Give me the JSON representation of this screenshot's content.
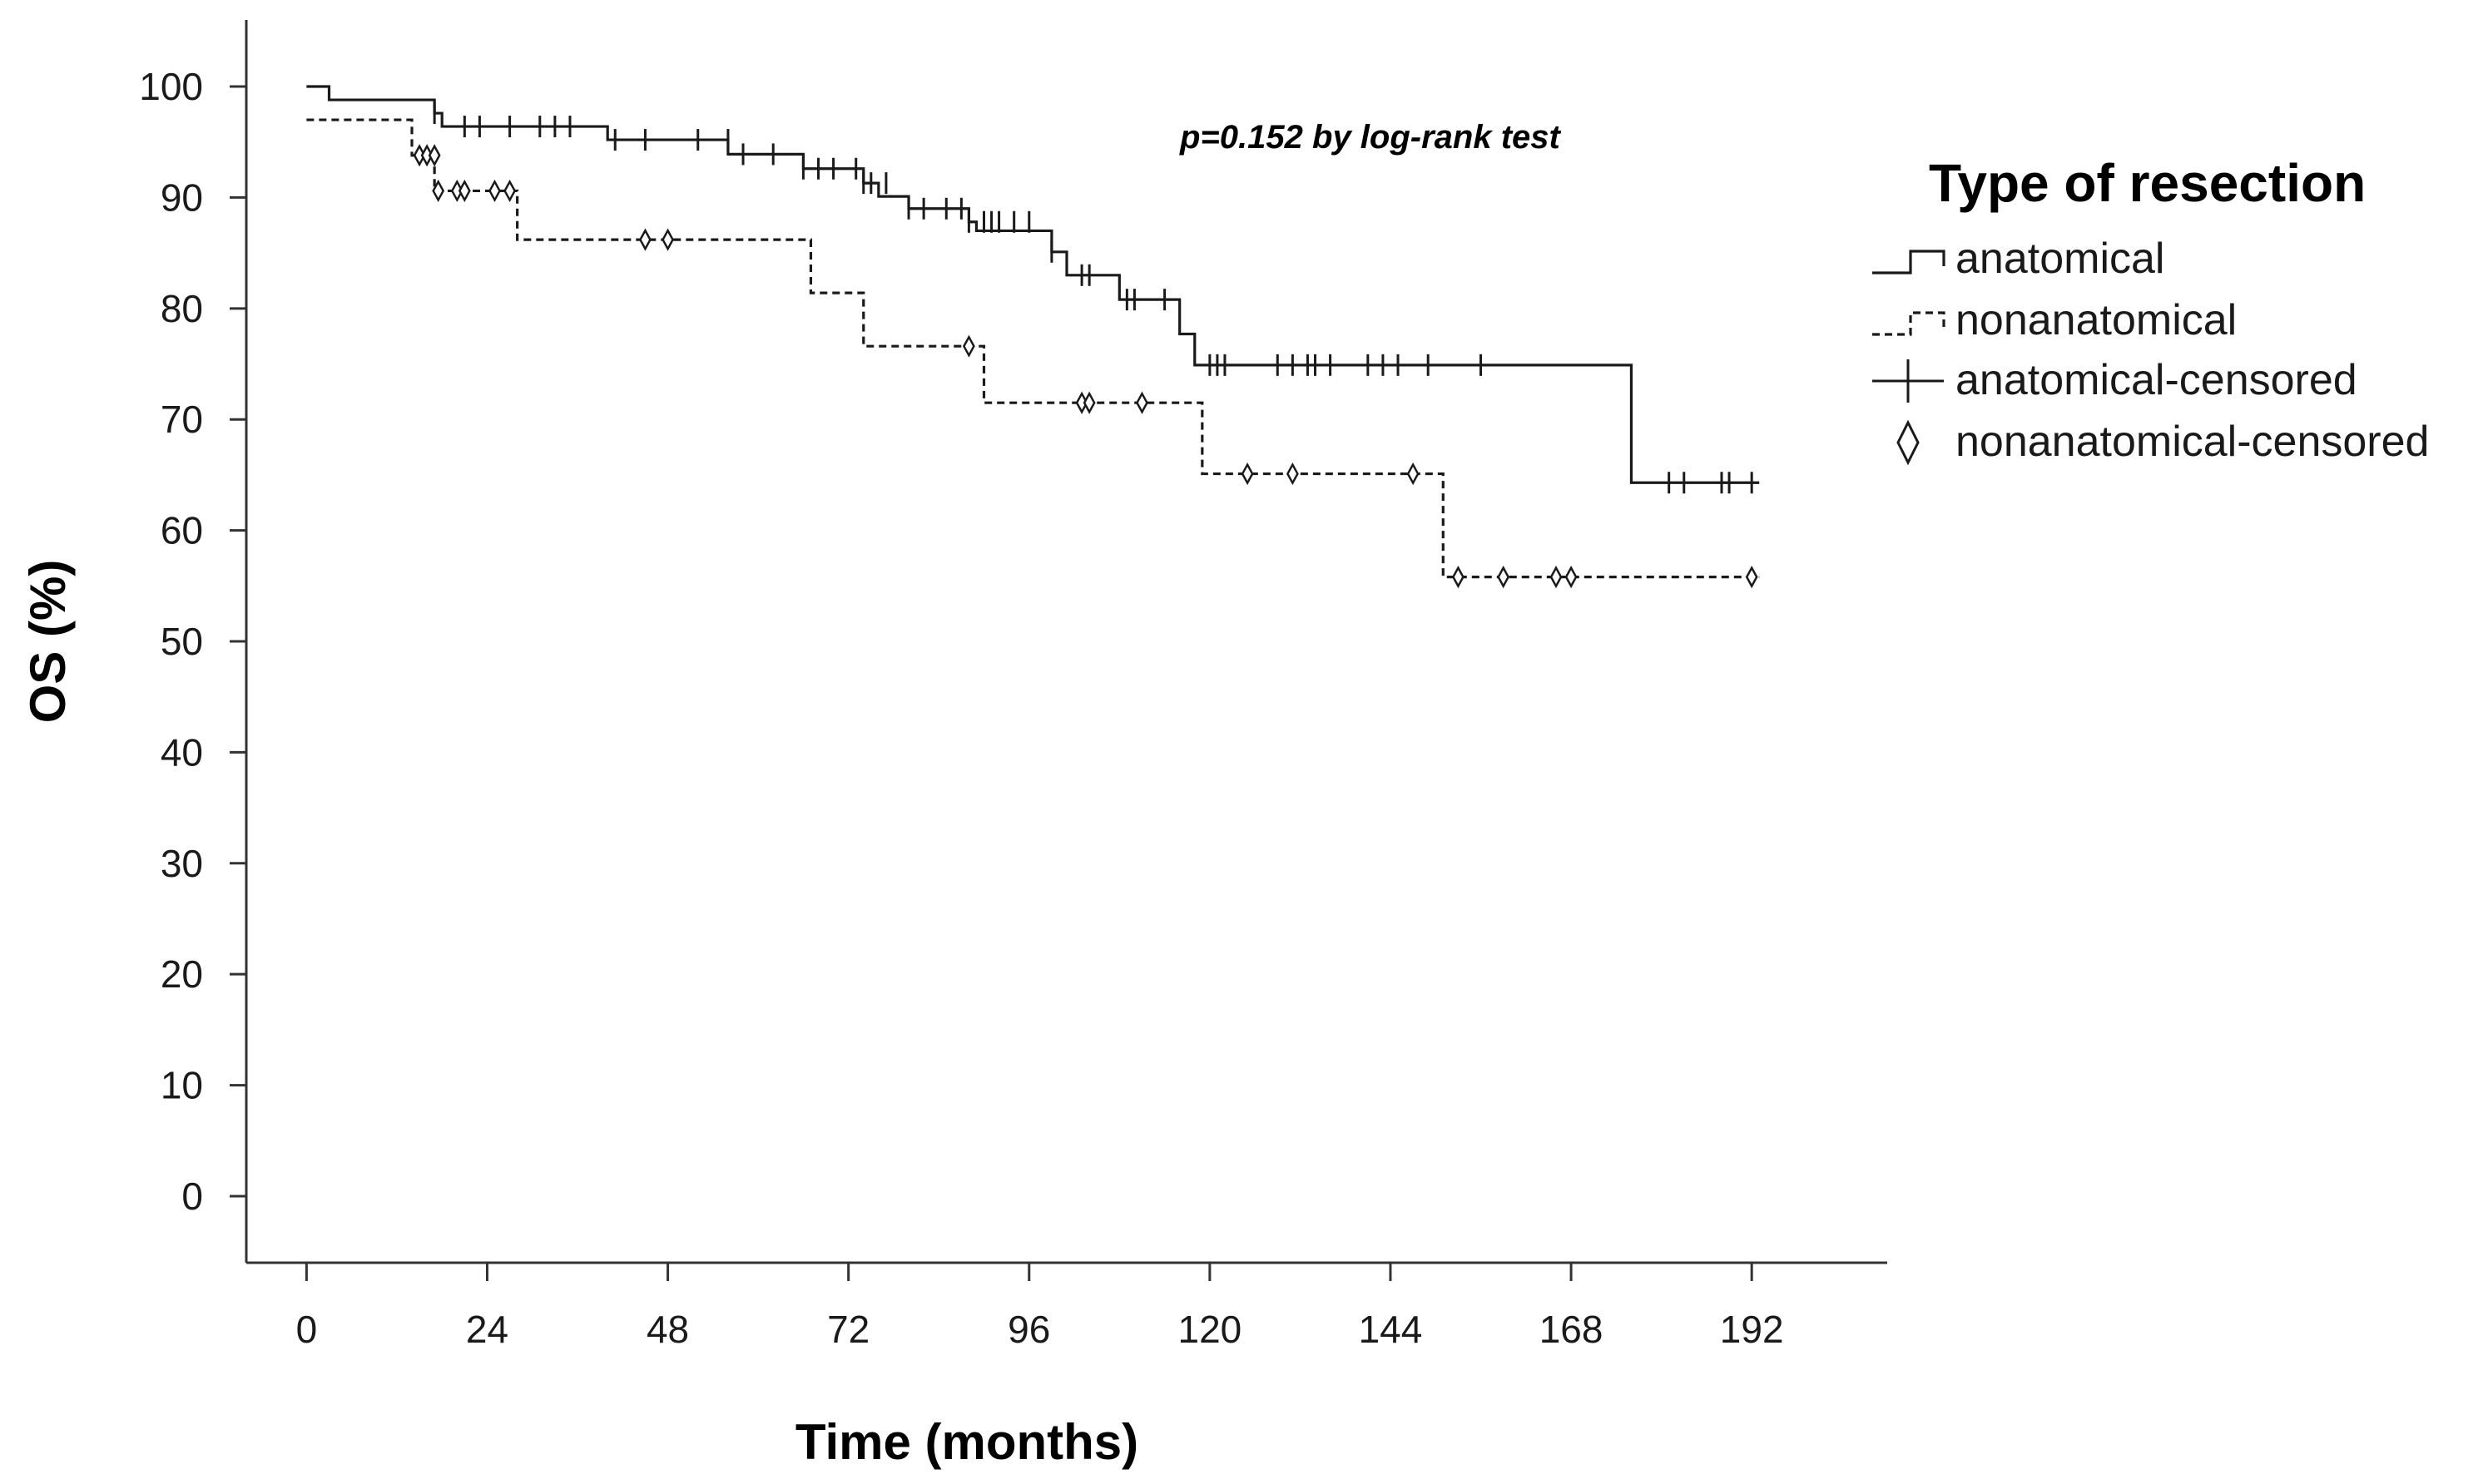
{
  "chart_data": {
    "type": "line",
    "subtype": "kaplan-meier step",
    "title": "",
    "annotation": "p=0.152 by log-rank test",
    "xlabel": "Time (months)",
    "ylabel": "OS (%)",
    "xlim": [
      -8,
      210
    ],
    "ylim": [
      -6,
      106
    ],
    "xticks": [
      0,
      24,
      48,
      72,
      96,
      120,
      144,
      168,
      192
    ],
    "yticks": [
      0,
      10,
      20,
      30,
      40,
      50,
      60,
      70,
      80,
      90,
      100
    ],
    "legend": {
      "title": "Type of resection",
      "placement": "right",
      "entries": [
        "anatomical",
        "nonanatomical",
        "anatomical-censored",
        "nonanatomical-censored"
      ]
    },
    "series": [
      {
        "name": "anatomical",
        "style": "solid",
        "censor_marker": "plus",
        "steps": [
          [
            0,
            100
          ],
          [
            3,
            98.8
          ],
          [
            17,
            97.6
          ],
          [
            18,
            96.4
          ],
          [
            40,
            95.2
          ],
          [
            56,
            93.9
          ],
          [
            66,
            92.6
          ],
          [
            74,
            91.3
          ],
          [
            76,
            90.1
          ],
          [
            80,
            89.0
          ],
          [
            88,
            87.8
          ],
          [
            89,
            87.0
          ],
          [
            99,
            85.1
          ],
          [
            101,
            83.0
          ],
          [
            108,
            80.8
          ],
          [
            116,
            77.7
          ],
          [
            118,
            74.9
          ],
          [
            176,
            64.3
          ],
          [
            193,
            64.3
          ]
        ],
        "censored": [
          [
            17,
            97.6
          ],
          [
            21,
            96.4
          ],
          [
            23,
            96.4
          ],
          [
            27,
            96.4
          ],
          [
            31,
            96.4
          ],
          [
            33,
            96.4
          ],
          [
            35,
            96.4
          ],
          [
            41,
            95.2
          ],
          [
            45,
            95.2
          ],
          [
            52,
            95.2
          ],
          [
            56,
            95.2
          ],
          [
            58,
            93.9
          ],
          [
            62,
            93.9
          ],
          [
            66,
            92.6
          ],
          [
            68,
            92.6
          ],
          [
            70,
            92.6
          ],
          [
            73,
            92.6
          ],
          [
            74,
            91.3
          ],
          [
            75,
            91.3
          ],
          [
            77,
            91.3
          ],
          [
            80,
            89.0
          ],
          [
            82,
            89.0
          ],
          [
            85,
            89.0
          ],
          [
            87,
            89.0
          ],
          [
            88,
            87.8
          ],
          [
            90,
            87.8
          ],
          [
            91,
            87.8
          ],
          [
            92,
            87.8
          ],
          [
            94,
            87.8
          ],
          [
            96,
            87.8
          ],
          [
            99,
            85.1
          ],
          [
            103,
            83.0
          ],
          [
            104,
            83.0
          ],
          [
            109,
            80.8
          ],
          [
            110,
            80.8
          ],
          [
            114,
            80.8
          ],
          [
            120,
            74.9
          ],
          [
            121,
            74.9
          ],
          [
            122,
            74.9
          ],
          [
            129,
            74.9
          ],
          [
            131,
            74.9
          ],
          [
            133,
            74.9
          ],
          [
            134,
            74.9
          ],
          [
            136,
            74.9
          ],
          [
            141,
            74.9
          ],
          [
            143,
            74.9
          ],
          [
            145,
            74.9
          ],
          [
            149,
            74.9
          ],
          [
            156,
            74.9
          ],
          [
            181,
            64.3
          ],
          [
            183,
            64.3
          ],
          [
            188,
            64.3
          ],
          [
            189,
            64.3
          ],
          [
            192,
            64.3
          ]
        ]
      },
      {
        "name": "nonanatomical",
        "style": "dashed",
        "censor_marker": "diamond",
        "steps": [
          [
            0,
            97.0
          ],
          [
            14,
            93.8
          ],
          [
            17,
            90.6
          ],
          [
            28,
            86.2
          ],
          [
            67,
            81.4
          ],
          [
            74,
            76.6
          ],
          [
            90,
            71.5
          ],
          [
            119,
            65.1
          ],
          [
            151,
            55.8
          ],
          [
            193,
            55.8
          ]
        ],
        "censored": [
          [
            15,
            93.8
          ],
          [
            16,
            93.8
          ],
          [
            17,
            93.8
          ],
          [
            17.5,
            90.6
          ],
          [
            20,
            90.6
          ],
          [
            21,
            90.6
          ],
          [
            25,
            90.6
          ],
          [
            27,
            90.6
          ],
          [
            45,
            86.2
          ],
          [
            48,
            86.2
          ],
          [
            88,
            76.6
          ],
          [
            103,
            71.5
          ],
          [
            104,
            71.5
          ],
          [
            111,
            71.5
          ],
          [
            125,
            65.1
          ],
          [
            131,
            65.1
          ],
          [
            147,
            65.1
          ],
          [
            153,
            55.8
          ],
          [
            159,
            55.8
          ],
          [
            166,
            55.8
          ],
          [
            168,
            55.8
          ],
          [
            192,
            55.8
          ]
        ]
      }
    ]
  }
}
